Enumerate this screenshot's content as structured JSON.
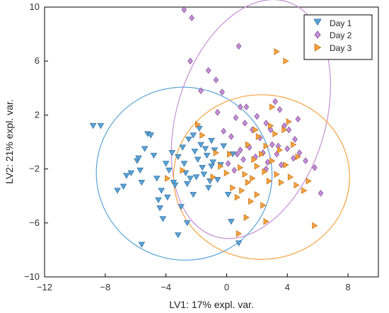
{
  "chart_data": {
    "type": "scatter",
    "xlabel": "LV1: 17% expl. var.",
    "ylabel": "LV2: 21% expl. var.",
    "xlim": [
      -12,
      10
    ],
    "ylim": [
      -10,
      10
    ],
    "xticks": [
      -12,
      -8,
      -4,
      0,
      4,
      8
    ],
    "yticks": [
      -10,
      -6,
      -2,
      2,
      6,
      10
    ],
    "grid": false,
    "legend_position": "top-right",
    "series": [
      {
        "name": "Day 1",
        "marker": "triangle-down",
        "color": "#5aa3d6",
        "edge": "#2f6e9e",
        "points": [
          [
            -8.8,
            1.2
          ],
          [
            -8.3,
            1.2
          ],
          [
            -7.2,
            -3.6
          ],
          [
            -6.8,
            -3.3
          ],
          [
            -6.6,
            -2.5
          ],
          [
            -6.3,
            -2.3
          ],
          [
            -5.9,
            -1.4
          ],
          [
            -5.8,
            -1.2
          ],
          [
            -5.7,
            -2.1
          ],
          [
            -5.6,
            -3.0
          ],
          [
            -5.4,
            -0.5
          ],
          [
            -5.2,
            0.6
          ],
          [
            -5.0,
            0.5
          ],
          [
            -4.8,
            -1.0
          ],
          [
            -4.6,
            -2.7
          ],
          [
            -4.5,
            -4.3
          ],
          [
            -4.4,
            -4.9
          ],
          [
            -4.3,
            -3.6
          ],
          [
            -4.2,
            -5.7
          ],
          [
            -4.0,
            -1.6
          ],
          [
            -3.8,
            -2.1
          ],
          [
            -3.6,
            -0.8
          ],
          [
            -3.5,
            -3.0
          ],
          [
            -3.4,
            -3.2
          ],
          [
            -3.2,
            -1.1
          ],
          [
            -3.0,
            -4.8
          ],
          [
            -2.9,
            -0.4
          ],
          [
            -2.8,
            -1.6
          ],
          [
            -2.7,
            -2.3
          ],
          [
            -2.6,
            -3.1
          ],
          [
            -2.5,
            0.2
          ],
          [
            -2.4,
            -2.7
          ],
          [
            -2.2,
            -3.9
          ],
          [
            -2.1,
            -0.7
          ],
          [
            -2.0,
            -2.6
          ],
          [
            -1.9,
            -1.3
          ],
          [
            -1.8,
            1.0
          ],
          [
            -1.7,
            -0.2
          ],
          [
            -1.6,
            -1.9
          ],
          [
            -1.5,
            -2.4
          ],
          [
            -1.4,
            -0.5
          ],
          [
            -1.3,
            -1.0
          ],
          [
            -1.2,
            -3.4
          ],
          [
            -1.1,
            -2.9
          ],
          [
            -1.0,
            0.1
          ],
          [
            -0.9,
            -1.5
          ],
          [
            -0.8,
            -0.6
          ],
          [
            -0.6,
            -2.8
          ],
          [
            -0.4,
            -1.7
          ],
          [
            -0.2,
            -0.3
          ],
          [
            0.1,
            -3.9
          ],
          [
            0.4,
            -0.9
          ],
          [
            0.8,
            -7.5
          ],
          [
            -5.6,
            -7.6
          ],
          [
            -3.2,
            -6.9
          ],
          [
            -2.6,
            -6.0
          ],
          [
            0.3,
            -5.9
          ],
          [
            -2.2,
            0.5
          ],
          [
            -3.9,
            -4.1
          ],
          [
            -1.0,
            -1.8
          ]
        ]
      },
      {
        "name": "Day 2",
        "marker": "diamond",
        "color": "#c58fd6",
        "edge": "#7d4a94",
        "points": [
          [
            -2.8,
            9.8
          ],
          [
            -2.3,
            9.2
          ],
          [
            0.8,
            7.1
          ],
          [
            -2.4,
            6.0
          ],
          [
            -1.7,
            3.8
          ],
          [
            -0.7,
            4.6
          ],
          [
            -0.3,
            3.7
          ],
          [
            0.9,
            2.6
          ],
          [
            1.3,
            2.6
          ],
          [
            2.0,
            1.9
          ],
          [
            2.6,
            1.4
          ],
          [
            3.2,
            3.0
          ],
          [
            3.5,
            2.4
          ],
          [
            3.8,
            1.2
          ],
          [
            4.1,
            0.9
          ],
          [
            4.5,
            0.2
          ],
          [
            4.8,
            -0.8
          ],
          [
            5.2,
            -1.4
          ],
          [
            5.8,
            -1.9
          ],
          [
            0.3,
            0.4
          ],
          [
            0.7,
            -0.9
          ],
          [
            1.1,
            -1.3
          ],
          [
            1.5,
            -0.4
          ],
          [
            1.9,
            -1.1
          ],
          [
            2.4,
            -0.8
          ],
          [
            2.7,
            -1.5
          ],
          [
            3.0,
            -0.2
          ],
          [
            3.3,
            -0.9
          ],
          [
            3.6,
            -1.7
          ],
          [
            4.0,
            -0.5
          ],
          [
            4.4,
            -1.2
          ],
          [
            0.1,
            -1.6
          ],
          [
            0.5,
            -2.1
          ],
          [
            0.9,
            -0.6
          ],
          [
            1.7,
            0.9
          ],
          [
            2.2,
            0.3
          ],
          [
            2.9,
            0.9
          ],
          [
            3.4,
            -0.3
          ],
          [
            6.2,
            -3.8
          ],
          [
            2.6,
            -2.0
          ],
          [
            1.2,
            1.4
          ],
          [
            0.6,
            1.8
          ],
          [
            -0.2,
            0.8
          ],
          [
            -0.6,
            2.2
          ],
          [
            4.7,
            1.7
          ],
          [
            -1.2,
            5.3
          ]
        ]
      },
      {
        "name": "Day 3",
        "marker": "triangle-right",
        "color": "#f5a340",
        "edge": "#c46f12",
        "points": [
          [
            3.3,
            6.7
          ],
          [
            3.9,
            6.0
          ],
          [
            -1.9,
            1.3
          ],
          [
            -1.6,
            0.5
          ],
          [
            0.2,
            -0.9
          ],
          [
            0.9,
            -1.9
          ],
          [
            1.2,
            -2.4
          ],
          [
            1.4,
            -3.0
          ],
          [
            1.7,
            -2.7
          ],
          [
            2.0,
            -1.8
          ],
          [
            2.3,
            -0.9
          ],
          [
            2.5,
            -2.2
          ],
          [
            2.8,
            -2.9
          ],
          [
            3.0,
            -1.4
          ],
          [
            3.3,
            -2.4
          ],
          [
            3.6,
            -3.0
          ],
          [
            3.9,
            -1.7
          ],
          [
            4.2,
            -2.6
          ],
          [
            4.6,
            -3.2
          ],
          [
            5.1,
            -3.6
          ],
          [
            5.4,
            -2.9
          ],
          [
            1.4,
            -0.2
          ],
          [
            1.8,
            -1.3
          ],
          [
            2.1,
            0.4
          ],
          [
            2.6,
            -0.3
          ],
          [
            2.9,
            1.2
          ],
          [
            3.2,
            0.6
          ],
          [
            3.5,
            -0.6
          ],
          [
            3.8,
            0.9
          ],
          [
            4.1,
            1.5
          ],
          [
            4.4,
            -0.2
          ],
          [
            4.7,
            -1.1
          ],
          [
            -0.9,
            -2.6
          ],
          [
            -0.4,
            -1.8
          ],
          [
            0.0,
            -2.3
          ],
          [
            0.4,
            -3.4
          ],
          [
            0.7,
            -4.1
          ],
          [
            1.0,
            -3.6
          ],
          [
            1.6,
            -4.4
          ],
          [
            2.0,
            -3.9
          ],
          [
            2.4,
            -4.7
          ],
          [
            1.3,
            -5.6
          ],
          [
            2.6,
            -5.9
          ],
          [
            5.8,
            -6.2
          ],
          [
            0.8,
            -6.8
          ],
          [
            -3.9,
            -2.7
          ],
          [
            -2.9,
            -2.1
          ],
          [
            -0.7,
            -0.8
          ],
          [
            1.9,
            0.9
          ],
          [
            3.0,
            2.6
          ]
        ]
      }
    ],
    "ellipses": [
      {
        "series": "Day 1",
        "cx": -2.8,
        "cy": -2.35,
        "rx": 5.8,
        "ry": 6.4,
        "angle": 17
      },
      {
        "series": "Day 2",
        "cx": 1.6,
        "cy": 1.7,
        "rx": 4.9,
        "ry": 9.1,
        "angle": 17
      },
      {
        "series": "Day 3",
        "cx": 2.3,
        "cy": -2.6,
        "rx": 5.8,
        "ry": 6.1,
        "angle": 0
      }
    ]
  }
}
